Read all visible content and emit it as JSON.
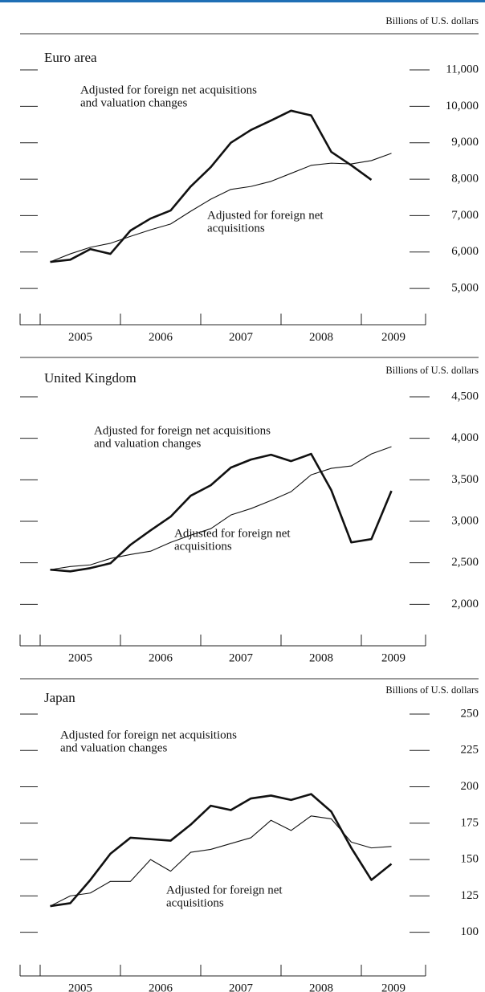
{
  "chart_data": [
    {
      "type": "line",
      "title": "Euro area",
      "y_label": "Billions of U.S. dollars",
      "x": [
        2005.125,
        2005.375,
        2005.625,
        2005.875,
        2006.125,
        2006.375,
        2006.625,
        2006.875,
        2007.125,
        2007.375,
        2007.625,
        2007.875,
        2008.125,
        2008.375,
        2008.625,
        2008.875,
        2009.125,
        2009.375
      ],
      "xlim": [
        2004.75,
        2009.8
      ],
      "xticks": [
        2005,
        2006,
        2007,
        2008,
        2009
      ],
      "ylim": [
        4000,
        11000
      ],
      "yticks": [
        {
          "value": 5000,
          "label": "5,000"
        },
        {
          "value": 6000,
          "label": "6,000"
        },
        {
          "value": 7000,
          "label": "7,000"
        },
        {
          "value": 8000,
          "label": "8,000"
        },
        {
          "value": 9000,
          "label": "9,000"
        },
        {
          "value": 10000,
          "label": "10,000"
        },
        {
          "value": 11000,
          "label": "11,000"
        }
      ],
      "series": [
        {
          "name_lines": [
            "Adjusted for foreign net acquisitions",
            "and valuation changes"
          ],
          "color": "#111111",
          "width": 2.6,
          "values": [
            5730,
            5790,
            6080,
            5950,
            6590,
            6920,
            7140,
            7800,
            8330,
            9000,
            9350,
            9610,
            9880,
            9750,
            8750,
            8380,
            7980,
            null
          ]
        },
        {
          "name_lines": [
            "Adjusted for foreign net",
            "acquisitions"
          ],
          "color": "#111111",
          "width": 1.1,
          "values": [
            5730,
            5950,
            6130,
            6240,
            6430,
            6610,
            6770,
            7120,
            7450,
            7720,
            7800,
            7940,
            8160,
            8380,
            8440,
            8420,
            8510,
            8710
          ]
        }
      ]
    },
    {
      "type": "line",
      "title": "United Kingdom",
      "y_label": "Billions of U.S. dollars",
      "x": [
        2005.125,
        2005.375,
        2005.625,
        2005.875,
        2006.125,
        2006.375,
        2006.625,
        2006.875,
        2007.125,
        2007.375,
        2007.625,
        2007.875,
        2008.125,
        2008.375,
        2008.625,
        2008.875,
        2009.125,
        2009.375
      ],
      "xlim": [
        2004.75,
        2009.8
      ],
      "xticks": [
        2005,
        2006,
        2007,
        2008,
        2009
      ],
      "ylim": [
        1500,
        4500
      ],
      "yticks": [
        {
          "value": 2000,
          "label": "2,000"
        },
        {
          "value": 2500,
          "label": "2,500"
        },
        {
          "value": 3000,
          "label": "3,000"
        },
        {
          "value": 3500,
          "label": "3,500"
        },
        {
          "value": 4000,
          "label": "4,000"
        },
        {
          "value": 4500,
          "label": "4,500"
        }
      ],
      "series": [
        {
          "name_lines": [
            "Adjusted for foreign net acquisitions",
            "and valuation changes"
          ],
          "color": "#111111",
          "width": 2.6,
          "values": [
            2417,
            2397,
            2436,
            2494,
            2717,
            2891,
            3056,
            3308,
            3434,
            3647,
            3744,
            3802,
            3725,
            3812,
            3376,
            2746,
            2785,
            3366
          ]
        },
        {
          "name_lines": [
            "Adjusted for foreign net",
            "acquisitions"
          ],
          "color": "#111111",
          "width": 1.1,
          "values": [
            2417,
            2455,
            2475,
            2552,
            2600,
            2640,
            2746,
            2833,
            2911,
            3076,
            3153,
            3250,
            3357,
            3560,
            3638,
            3667,
            3812,
            3899
          ]
        }
      ]
    },
    {
      "type": "line",
      "title": "Japan",
      "y_label": "Billions of U.S. dollars",
      "x": [
        2005.125,
        2005.375,
        2005.625,
        2005.875,
        2006.125,
        2006.375,
        2006.625,
        2006.875,
        2007.125,
        2007.375,
        2007.625,
        2007.875,
        2008.125,
        2008.375,
        2008.625,
        2008.875,
        2009.125,
        2009.375
      ],
      "xlim": [
        2004.75,
        2009.8
      ],
      "xticks": [
        2005,
        2006,
        2007,
        2008,
        2009
      ],
      "ylim": [
        70,
        250
      ],
      "yticks": [
        100,
        125,
        150,
        175,
        200,
        225,
        250
      ],
      "series": [
        {
          "name_lines": [
            "Adjusted for foreign net acquisitions",
            "and valuation changes"
          ],
          "color": "#111111",
          "width": 2.6,
          "values": [
            118,
            120,
            136,
            154,
            165,
            164,
            163,
            174,
            187,
            184,
            192,
            194,
            191,
            195,
            183,
            158,
            136,
            147
          ]
        },
        {
          "name_lines": [
            "Adjusted for foreign net",
            "acquisitions"
          ],
          "color": "#111111",
          "width": 1.1,
          "values": [
            118,
            125,
            127,
            135,
            135,
            150,
            142,
            155,
            157,
            161,
            165,
            177,
            170,
            180,
            178,
            162,
            158,
            159
          ]
        }
      ]
    }
  ]
}
